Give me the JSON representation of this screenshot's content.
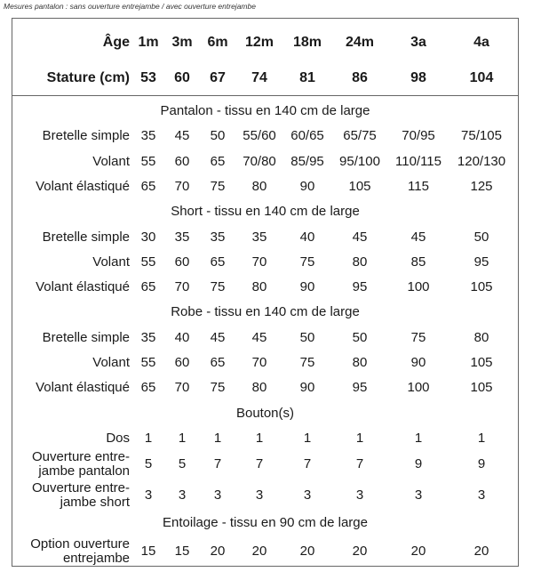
{
  "caption": "Mesures pantalon : sans ouverture entrejambe / avec ouverture entrejambe",
  "header": {
    "rows": [
      [
        "Âge",
        "1m",
        "3m",
        "6m",
        "12m",
        "18m",
        "24m",
        "3a",
        "4a"
      ],
      [
        "Stature (cm)",
        53,
        60,
        67,
        74,
        81,
        86,
        98,
        104
      ]
    ]
  },
  "sections": [
    {
      "title": "Pantalon - tissu en 140 cm de large",
      "rows": [
        [
          "Bretelle simple",
          35,
          45,
          50,
          "55/60",
          "60/65",
          "65/75",
          "70/95",
          "75/105"
        ],
        [
          "Volant",
          55,
          60,
          65,
          "70/80",
          "85/95",
          "95/100",
          "110/115",
          "120/130"
        ],
        [
          "Volant élastiqué",
          65,
          70,
          75,
          80,
          90,
          105,
          115,
          125
        ]
      ]
    },
    {
      "title": "Short - tissu en 140 cm de large",
      "rows": [
        [
          "Bretelle simple",
          30,
          35,
          35,
          35,
          40,
          45,
          45,
          50
        ],
        [
          "Volant",
          55,
          60,
          65,
          70,
          75,
          80,
          85,
          95
        ],
        [
          "Volant élastiqué",
          65,
          70,
          75,
          80,
          90,
          95,
          100,
          105
        ]
      ]
    },
    {
      "title": "Robe - tissu en 140 cm de large",
      "rows": [
        [
          "Bretelle simple",
          35,
          40,
          45,
          45,
          50,
          50,
          75,
          80
        ],
        [
          "Volant",
          55,
          60,
          65,
          70,
          75,
          80,
          90,
          105
        ],
        [
          "Volant élastiqué",
          65,
          70,
          75,
          80,
          90,
          95,
          100,
          105
        ]
      ]
    },
    {
      "title": "Bouton(s)",
      "rows": [
        [
          "Dos",
          1,
          1,
          1,
          1,
          1,
          1,
          1,
          1
        ],
        [
          "Ouverture entre-jambe pantalon",
          5,
          5,
          7,
          7,
          7,
          7,
          9,
          9
        ],
        [
          "Ouverture entre-jambe short",
          3,
          3,
          3,
          3,
          3,
          3,
          3,
          3
        ]
      ]
    },
    {
      "title": "Entoilage - tissu en 90 cm de large",
      "rows": [
        [
          "Option ouverture entrejambe",
          15,
          15,
          20,
          20,
          20,
          20,
          20,
          20
        ]
      ]
    }
  ]
}
